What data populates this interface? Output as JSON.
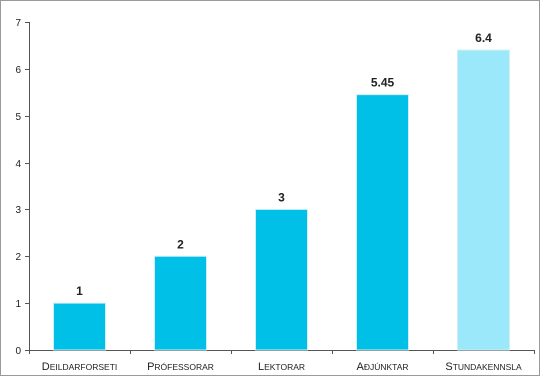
{
  "chart_data": {
    "type": "bar",
    "title": "",
    "xlabel": "",
    "ylabel": "",
    "ylim": [
      0,
      7
    ],
    "yticks": [
      "0",
      "1",
      "2",
      "3",
      "4",
      "5",
      "6",
      "7"
    ],
    "grid": false,
    "categories": [
      {
        "first": "D",
        "rest": "EILDARFORSETI"
      },
      {
        "first": "P",
        "rest": "RÓFESSORAR"
      },
      {
        "first": "L",
        "rest": "EKTORAR"
      },
      {
        "first": "A",
        "rest": "ÐJÚNKTAR"
      },
      {
        "first": "S",
        "rest": "TUNDAKENNSLA"
      }
    ],
    "values": [
      1,
      2,
      3,
      5.45,
      6.4
    ],
    "data_labels": [
      "1",
      "2",
      "3",
      "5.45",
      "6.4"
    ],
    "colors": [
      "#00c0e8",
      "#00c0e8",
      "#00c0e8",
      "#00c0e8",
      "#9be8fb"
    ],
    "frame_color": "#9a9a9a"
  }
}
